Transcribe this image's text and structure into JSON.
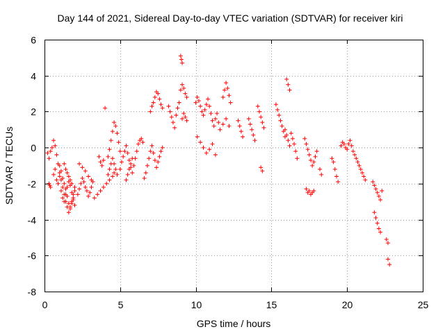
{
  "chart_data": {
    "type": "scatter",
    "title": "Day 144 of 2021, Sidereal Day-to-day VTEC variation (SDTVAR) for receiver kiri",
    "xlabel": "GPS time / hours",
    "ylabel": "SDTVAR / TECUs",
    "xlim": [
      0,
      25
    ],
    "ylim": [
      -8,
      6
    ],
    "xticks": [
      0,
      5,
      10,
      15,
      20,
      25
    ],
    "yticks": [
      -8,
      -6,
      -4,
      -2,
      0,
      2,
      4,
      6
    ],
    "grid": true,
    "marker": "plus",
    "color": "#ff0000",
    "series": [
      {
        "name": "SDTVAR",
        "x": [
          0.2,
          0.3,
          0.4,
          0.5,
          0.6,
          0.7,
          0.8,
          0.9,
          1.0,
          1.1,
          1.2,
          1.3,
          1.4,
          1.5,
          1.6,
          1.7,
          1.8,
          1.9,
          2.0,
          0.3,
          0.35,
          0.4,
          0.6,
          0.7,
          0.8,
          0.9,
          1.0,
          1.1,
          1.2,
          1.3,
          1.4,
          1.5,
          1.6,
          1.7,
          1.8,
          1.9,
          2.0,
          1.0,
          1.1,
          1.2,
          1.3,
          1.4,
          1.5,
          1.6,
          1.7,
          1.8,
          1.9,
          2.0,
          1.3,
          1.4,
          1.5,
          1.6,
          1.7,
          1.8,
          2.2,
          2.3,
          2.4,
          2.5,
          2.6,
          2.7,
          2.8,
          2.9,
          3.0,
          3.1,
          3.2,
          2.3,
          2.5,
          2.7,
          2.9,
          3.1,
          3.3,
          3.5,
          3.7,
          3.9,
          4.1,
          4.3,
          4.5,
          4.6,
          3.6,
          3.7,
          3.8,
          3.9,
          4.0,
          4.2,
          4.3,
          4.4,
          4.5,
          4.6,
          4.7,
          4.8,
          4.9,
          5.0,
          4.2,
          4.3,
          4.4,
          4.5,
          4.6,
          4.7,
          4.8,
          5.0,
          5.1,
          5.2,
          5.3,
          5.4,
          5.5,
          5.6,
          5.7,
          5.8,
          5.9,
          6.0,
          6.1,
          6.2,
          6.3,
          6.4,
          6.5,
          5.4,
          5.5,
          5.6,
          5.7,
          5.8,
          6.6,
          6.7,
          6.8,
          6.9,
          7.0,
          7.1,
          7.2,
          7.3,
          7.4,
          7.5,
          7.6,
          7.7,
          7.8,
          7.0,
          7.1,
          7.2,
          7.3,
          7.4,
          7.5,
          7.6,
          7.7,
          7.8,
          8.2,
          8.3,
          8.4,
          8.5,
          8.6,
          8.7,
          8.8,
          8.9,
          9.0,
          9.05,
          9.1,
          9.0,
          9.1,
          9.2,
          9.3,
          9.4,
          9.1,
          9.2,
          9.3,
          9.4,
          10.0,
          10.1,
          10.2,
          10.3,
          10.4,
          10.5,
          10.6,
          10.7,
          10.8,
          10.9,
          11.0,
          11.1,
          11.2,
          11.3,
          11.4,
          11.5,
          10.1,
          10.3,
          10.5,
          10.7,
          10.9,
          11.1,
          11.3,
          11.8,
          11.9,
          12.0,
          12.1,
          12.2,
          12.3,
          11.6,
          11.8,
          12.0,
          12.2,
          12.8,
          12.9,
          13.0,
          13.1,
          13.5,
          13.6,
          13.7,
          13.8,
          13.9,
          14.1,
          14.2,
          14.3,
          14.4,
          14.5,
          14.3,
          14.4,
          15.3,
          15.4,
          15.5,
          15.6,
          15.7,
          15.8,
          15.9,
          16.0,
          16.1,
          16.2,
          16.3,
          16.4,
          16.5,
          16.6,
          16.7,
          15.9,
          16.0,
          16.1,
          16.2,
          17.2,
          17.3,
          17.4,
          17.5,
          17.6,
          17.7,
          17.8,
          17.9,
          18.0,
          17.3,
          17.4,
          17.5,
          17.6,
          17.7,
          17.8,
          18.2,
          18.3,
          19.0,
          19.1,
          19.2,
          19.3,
          19.4,
          19.6,
          19.7,
          19.8,
          19.9,
          20.0,
          20.1,
          20.2,
          20.3,
          20.4,
          20.5,
          20.6,
          20.7,
          20.8,
          20.9,
          21.0,
          21.1,
          21.2,
          21.7,
          21.8,
          21.9,
          22.0,
          22.1,
          22.2,
          22.3,
          21.8,
          21.9,
          22.0,
          22.1,
          22.2,
          22.6,
          22.7,
          22.7,
          22.8
        ],
        "y": [
          -0.3,
          -0.6,
          -0.2,
          0.0,
          0.4,
          0.1,
          -0.4,
          -0.9,
          -1.4,
          -1.8,
          -2.2,
          -2.6,
          -3.0,
          -3.3,
          -3.6,
          -3.3,
          -3.0,
          -2.6,
          -2.2,
          -2.0,
          -2.1,
          -2.2,
          -1.5,
          -1.2,
          -1.8,
          -2.0,
          -1.6,
          -2.4,
          -2.8,
          -3.0,
          -2.6,
          -2.2,
          -1.9,
          -2.1,
          -2.5,
          -2.9,
          -3.2,
          -1.0,
          -1.3,
          -1.7,
          -2.0,
          -2.3,
          -2.7,
          -3.1,
          -3.4,
          -3.1,
          -2.8,
          -2.4,
          -0.9,
          -1.2,
          -1.4,
          -1.6,
          -1.8,
          -2.0,
          -2.6,
          -2.3,
          -2.0,
          -1.7,
          -1.9,
          -2.2,
          -2.4,
          -2.7,
          -2.5,
          -2.2,
          -1.9,
          -0.9,
          -1.1,
          -1.3,
          -1.6,
          -1.8,
          -2.8,
          -2.6,
          -2.4,
          -2.2,
          -2.0,
          -1.8,
          -1.6,
          -1.4,
          -0.5,
          -0.8,
          -1.0,
          -0.7,
          2.2,
          -0.5,
          -0.1,
          0.4,
          0.9,
          1.4,
          1.2,
          0.8,
          0.3,
          -0.2,
          -1.5,
          -1.2,
          -0.9,
          -0.6,
          -0.9,
          -1.2,
          -1.5,
          -1.2,
          -0.8,
          -0.5,
          -0.2,
          0.1,
          -0.3,
          -0.7,
          -1.1,
          -1.4,
          -1.0,
          -0.6,
          -0.2,
          0.2,
          0.4,
          0.5,
          0.3,
          -1.8,
          -1.5,
          -1.2,
          -0.9,
          -0.6,
          -1.7,
          -1.4,
          -1.0,
          -0.6,
          -0.2,
          0.1,
          -0.3,
          -0.7,
          -1.1,
          -0.8,
          -0.5,
          -0.2,
          0.0,
          2.0,
          2.3,
          2.5,
          2.8,
          3.1,
          3.0,
          2.7,
          2.4,
          2.2,
          2.3,
          2.0,
          1.7,
          1.4,
          1.1,
          1.8,
          2.2,
          2.5,
          5.1,
          4.9,
          4.7,
          3.2,
          3.5,
          3.3,
          3.0,
          2.8,
          1.6,
          1.9,
          1.7,
          1.5,
          2.5,
          2.8,
          2.6,
          2.3,
          2.0,
          1.8,
          2.1,
          2.4,
          2.7,
          2.3,
          1.9,
          1.5,
          1.2,
          1.6,
          1.9,
          1.4,
          0.6,
          0.3,
          0.0,
          -0.3,
          -0.1,
          0.2,
          -0.4,
          2.8,
          3.2,
          3.6,
          3.3,
          2.9,
          2.5,
          1.0,
          1.3,
          1.6,
          1.2,
          1.5,
          1.2,
          0.9,
          0.6,
          1.6,
          1.3,
          1.0,
          0.7,
          0.4,
          2.3,
          2.0,
          1.7,
          1.4,
          1.1,
          -1.1,
          -1.3,
          2.4,
          2.1,
          1.8,
          1.5,
          1.2,
          0.9,
          0.6,
          3.8,
          3.5,
          3.2,
          0.8,
          0.5,
          0.2,
          -0.2,
          -0.6,
          1.0,
          0.7,
          0.4,
          0.1,
          0.5,
          0.2,
          -0.1,
          -0.4,
          -0.7,
          -1.0,
          -0.8,
          -0.5,
          -0.2,
          -2.3,
          -2.5,
          -2.4,
          -2.6,
          -2.5,
          -2.4,
          -1.2,
          -1.5,
          -0.6,
          -0.8,
          -1.2,
          -1.6,
          -1.9,
          0.1,
          0.3,
          0.2,
          0.0,
          -0.1,
          0.2,
          0.4,
          0.1,
          -0.2,
          -0.4,
          -0.6,
          -0.8,
          -1.0,
          -1.2,
          -1.4,
          -1.6,
          -1.8,
          -1.9,
          -2.1,
          -2.3,
          -2.5,
          -2.7,
          -2.9,
          -2.4,
          -3.6,
          -3.9,
          -4.2,
          -4.5,
          -4.7,
          -5.1,
          -5.3,
          -6.2,
          -6.5
        ]
      }
    ]
  }
}
